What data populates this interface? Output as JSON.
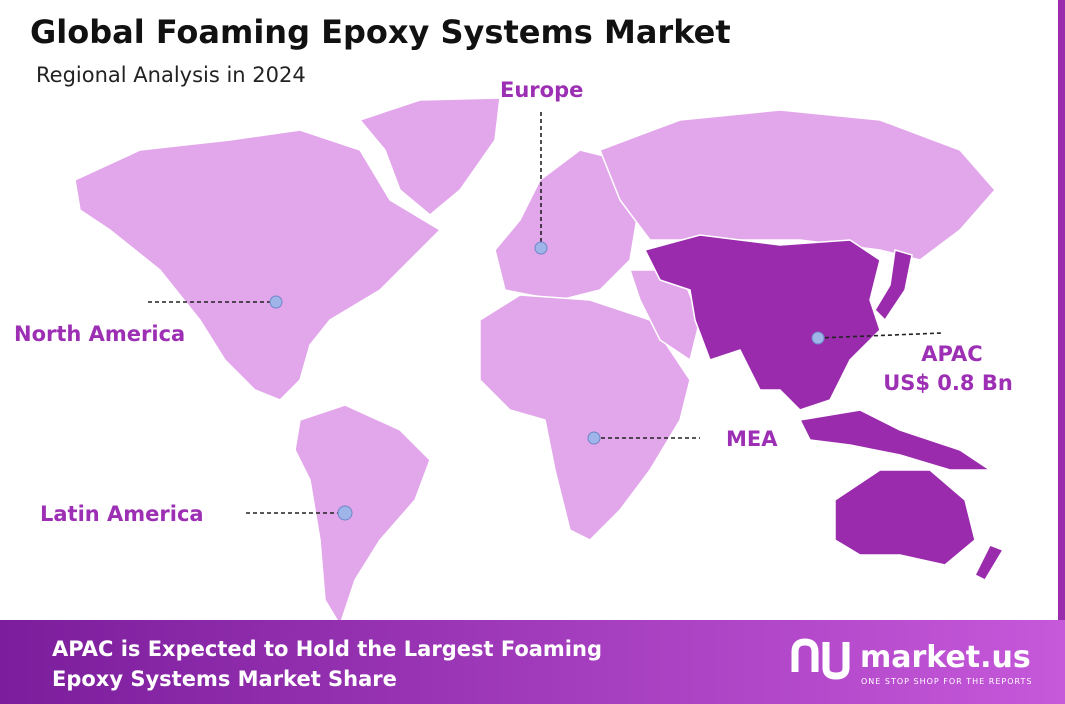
{
  "header": {
    "title": "Global Foaming Epoxy Systems Market",
    "subtitle": "Regional Analysis in 2024"
  },
  "regions": [
    {
      "label": "Europe"
    },
    {
      "label": "North America"
    },
    {
      "label": "APAC",
      "value_label": "US$ 0.8 Bn"
    },
    {
      "label": "MEA"
    },
    {
      "label": "Latin America"
    }
  ],
  "footer": {
    "lines": [
      "APAC is Expected to Hold the Largest Foaming",
      "Epoxy Systems Market Share"
    ],
    "brand": "market.us",
    "tagline": "ONE STOP SHOP FOR THE REPORTS"
  }
}
